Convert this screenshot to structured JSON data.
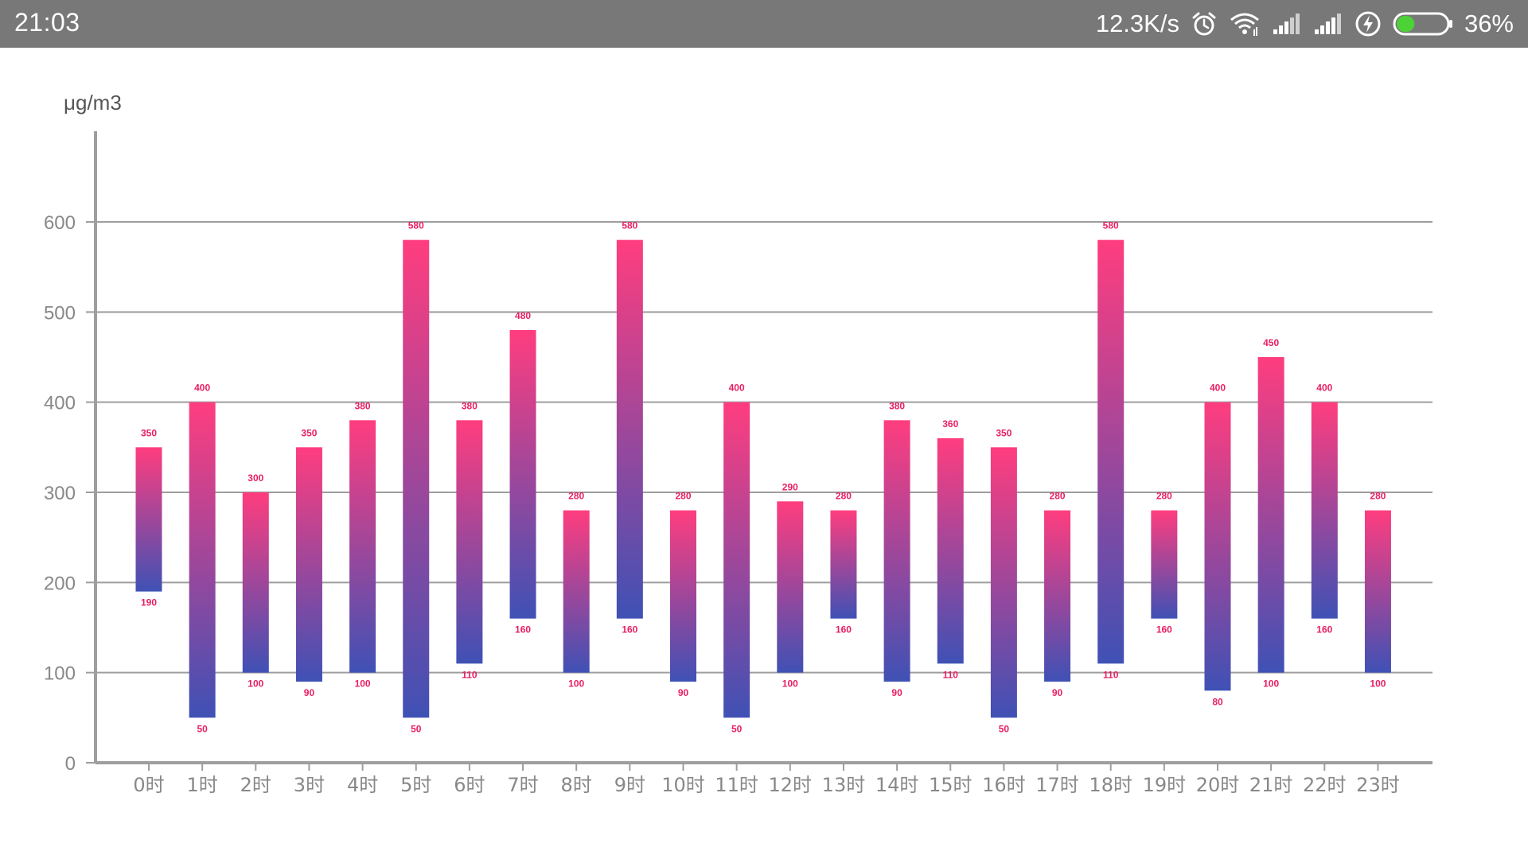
{
  "status_bar": {
    "time": "21:03",
    "network_speed": "12.3K/s",
    "battery_percent": "36%",
    "battery_level": 0.36,
    "battery_color": "#4cd137",
    "icons": [
      "alarm-icon",
      "wifi-icon",
      "signal-icon",
      "signal-icon",
      "charging-icon",
      "battery-icon"
    ]
  },
  "chart_data": {
    "type": "bar",
    "subtype": "floating-range",
    "ylabel": "μg/m3",
    "xlabel": "",
    "ylim": [
      0,
      600
    ],
    "yticks": [
      0,
      100,
      200,
      300,
      400,
      500,
      600
    ],
    "grid": true,
    "legend": "none",
    "categories": [
      "0时",
      "1时",
      "2时",
      "3时",
      "4时",
      "5时",
      "6时",
      "7时",
      "8时",
      "9时",
      "10时",
      "11时",
      "12时",
      "13时",
      "14时",
      "15时",
      "16时",
      "17时",
      "18时",
      "19时",
      "20时",
      "21时",
      "22时",
      "23时"
    ],
    "series": [
      {
        "high": [
          350,
          400,
          300,
          350,
          380,
          580,
          380,
          480,
          280,
          580,
          280,
          400,
          290,
          280,
          380,
          360,
          350,
          280,
          580,
          280,
          400,
          450,
          400,
          280
        ],
        "low": [
          190,
          50,
          100,
          90,
          100,
          50,
          110,
          160,
          100,
          160,
          90,
          50,
          100,
          160,
          90,
          110,
          50,
          90,
          110,
          160,
          80,
          100,
          160,
          100
        ]
      }
    ],
    "colors": {
      "bar_top": "#ff3d7f",
      "bar_bottom": "#3f51b5",
      "label": "#e91e63",
      "axis": "#9e9e9e",
      "grid": "#9e9e9e",
      "tick_text": "#888888"
    }
  }
}
